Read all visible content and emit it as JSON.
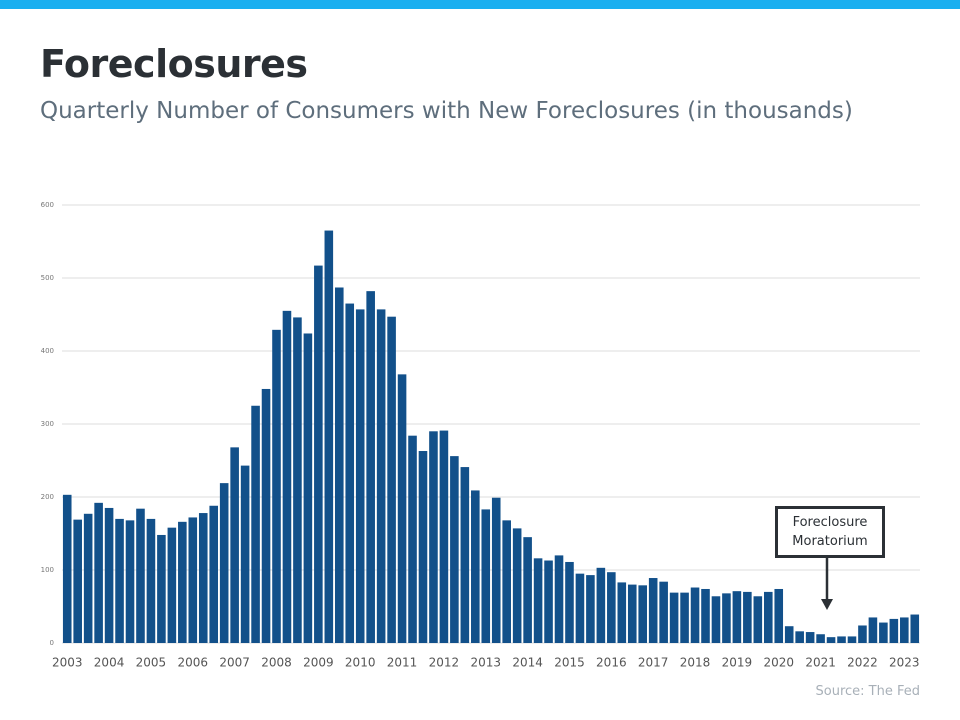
{
  "chart_data": {
    "type": "bar",
    "title": "Foreclosures",
    "subtitle": "Quarterly Number of Consumers with New Foreclosures (in thousands)",
    "annotation": "Foreclosure Moratorium",
    "source": "Source: The Fed",
    "categories": [
      "2003",
      null,
      null,
      null,
      "2004",
      null,
      null,
      null,
      "2005",
      null,
      null,
      null,
      "2006",
      null,
      null,
      null,
      "2007",
      null,
      null,
      null,
      "2008",
      null,
      null,
      null,
      "2009",
      null,
      null,
      null,
      "2010",
      null,
      null,
      null,
      "2011",
      null,
      null,
      null,
      "2012",
      null,
      null,
      null,
      "2013",
      null,
      null,
      null,
      "2014",
      null,
      null,
      null,
      "2015",
      null,
      null,
      null,
      "2016",
      null,
      null,
      null,
      "2017",
      null,
      null,
      null,
      "2018",
      null,
      null,
      null,
      "2019",
      null,
      null,
      null,
      "2020",
      null,
      null,
      null,
      "2021",
      null,
      null,
      null,
      "2022",
      null,
      null,
      null,
      "2023",
      null
    ],
    "values": [
      203,
      169,
      177,
      192,
      185,
      170,
      168,
      184,
      170,
      148,
      158,
      166,
      172,
      178,
      188,
      219,
      268,
      243,
      325,
      348,
      429,
      455,
      446,
      424,
      517,
      565,
      487,
      465,
      457,
      482,
      457,
      447,
      368,
      284,
      263,
      290,
      291,
      256,
      241,
      209,
      183,
      199,
      168,
      157,
      145,
      116,
      113,
      120,
      111,
      95,
      93,
      103,
      97,
      83,
      80,
      79,
      89,
      84,
      69,
      69,
      76,
      74,
      64,
      68,
      71,
      70,
      64,
      70,
      74,
      23,
      16,
      15,
      12,
      8,
      9,
      9,
      24,
      35,
      28,
      33,
      35,
      39
    ],
    "color": "#12508a",
    "ylim": [
      0,
      600
    ],
    "yticks": [
      0,
      100,
      200,
      300,
      400,
      500,
      600
    ],
    "grid": true
  }
}
